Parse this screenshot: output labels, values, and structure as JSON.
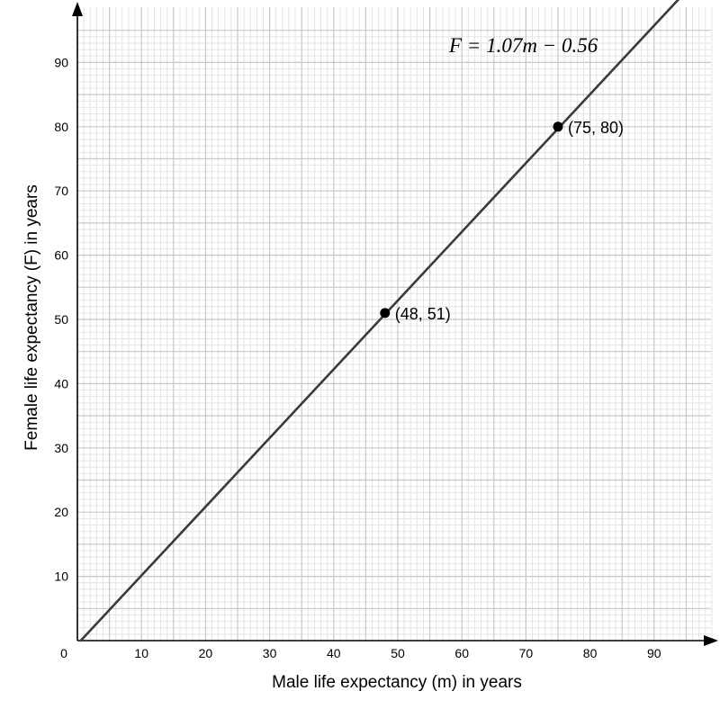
{
  "chart_data": {
    "type": "line",
    "xlabel": "Male life expectancy (m) in years",
    "ylabel": "Female life expectancy (F) in years",
    "xlim": [
      0,
      100
    ],
    "ylim": [
      0,
      96
    ],
    "x_ticks": [
      10,
      20,
      30,
      40,
      50,
      60,
      70,
      80,
      90
    ],
    "y_ticks": [
      10,
      20,
      30,
      40,
      50,
      60,
      70,
      80,
      90
    ],
    "origin_label": "0",
    "grid": true,
    "colors": {
      "line": "#3a3a3a",
      "major_grid": "#c8c8c8",
      "minor_grid": "#e4e4e4",
      "axis": "#000000"
    },
    "line": {
      "slope": 1.07,
      "intercept": -0.56,
      "x_range": [
        0,
        93.9
      ]
    },
    "equation": "F = 1.07m − 0.56",
    "points": [
      {
        "x": 48,
        "y": 51,
        "label": "(48, 51)"
      },
      {
        "x": 75,
        "y": 80,
        "label": "(75, 80)"
      }
    ]
  }
}
